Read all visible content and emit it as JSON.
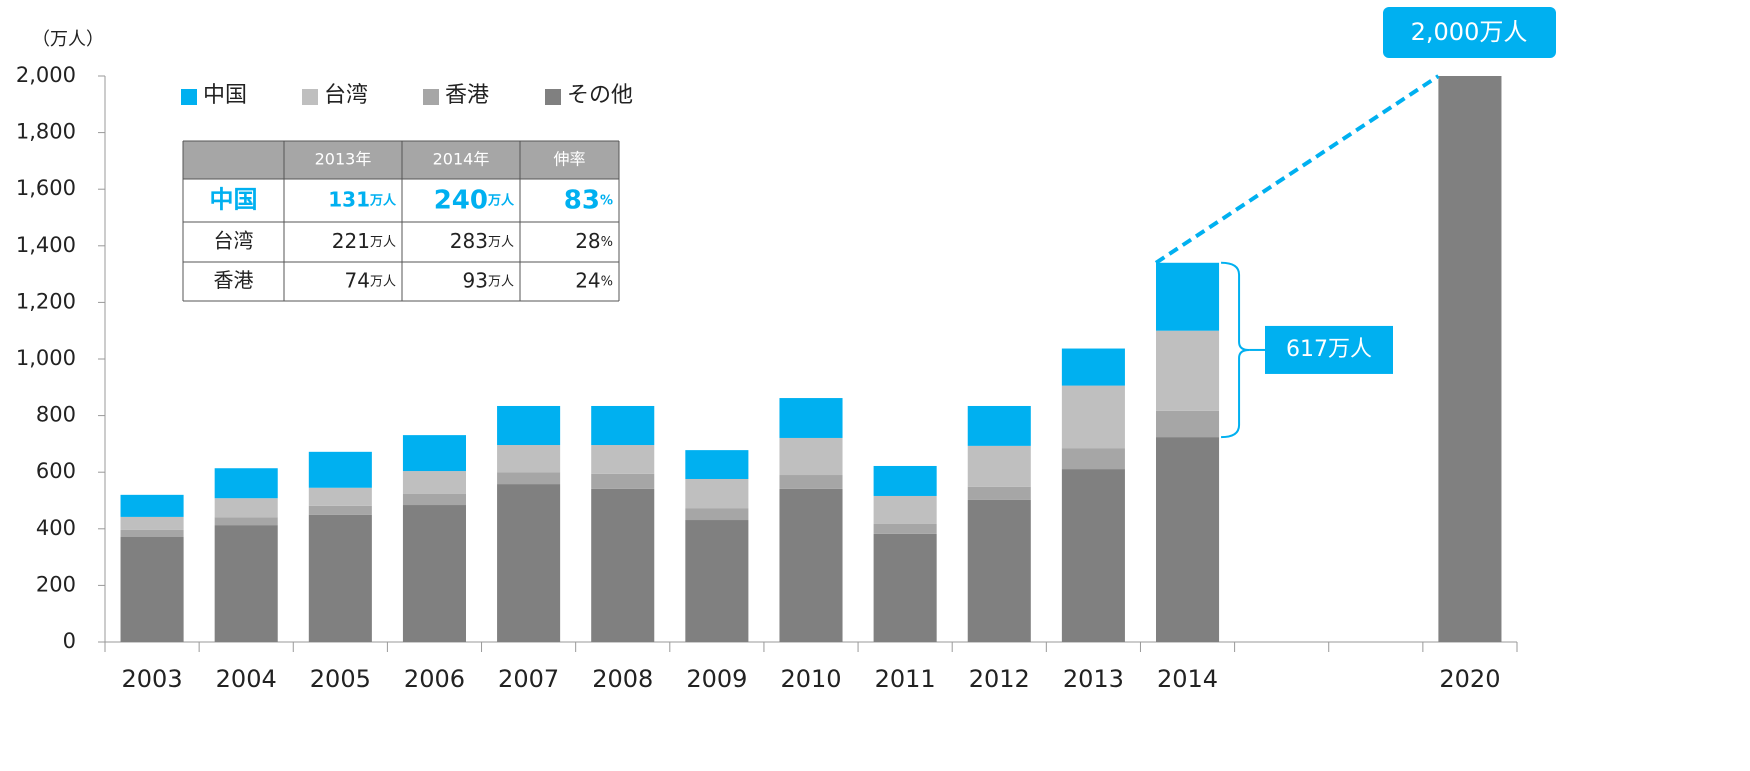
{
  "chart_data": {
    "type": "stacked-bar",
    "y_label": "（万人）",
    "categories": [
      "2003",
      "2004",
      "2005",
      "2006",
      "2007",
      "2008",
      "2009",
      "2010",
      "2011",
      "2012",
      "2013",
      "2014",
      null,
      null,
      "2020"
    ],
    "series": [
      {
        "name": "その他",
        "color": "#808080",
        "values": [
          371,
          413,
          449,
          484,
          558,
          541,
          431,
          541,
          382,
          502,
          611,
          724,
          null,
          null,
          2000
        ]
      },
      {
        "name": "香港",
        "color": "#a6a6a6",
        "values": [
          25,
          28,
          32,
          39,
          42,
          53,
          42,
          49,
          35,
          46,
          74,
          93,
          null,
          null,
          null
        ]
      },
      {
        "name": "台湾",
        "color": "#bfbfbf",
        "values": [
          46,
          67,
          64,
          81,
          96,
          102,
          103,
          131,
          99,
          145,
          221,
          283,
          null,
          null,
          null
        ]
      },
      {
        "name": "中国",
        "color": "#00b0f0",
        "values": [
          78,
          106,
          127,
          127,
          138,
          138,
          102,
          141,
          106,
          141,
          131,
          240,
          null,
          null,
          null
        ]
      }
    ],
    "ylim": [
      0,
      2000
    ],
    "yticks": [
      0,
      200,
      400,
      600,
      800,
      {
        "value": 1000,
        "label": "1,000"
      },
      {
        "value": 1200,
        "label": "1,200"
      },
      {
        "value": 1400,
        "label": "1,400"
      },
      {
        "value": 1600,
        "label": "1,600"
      },
      {
        "value": 1800,
        "label": "1,800"
      },
      {
        "value": 2000,
        "label": "2,000"
      }
    ],
    "annotations": [
      "2,000万人",
      "617万人"
    ],
    "table": {
      "header": [
        "",
        "2013年",
        "2014年",
        "伸率"
      ],
      "rows": [
        {
          "label": "中国",
          "cells": [
            [
              "131",
              "万人"
            ],
            [
              "240",
              "万人"
            ],
            [
              "83",
              "%"
            ]
          ]
        },
        {
          "label": "台湾",
          "cells": [
            [
              "221",
              "万人"
            ],
            [
              "283",
              "万人"
            ],
            [
              "28",
              "%"
            ]
          ]
        },
        {
          "label": "香港",
          "cells": [
            [
              "74",
              "万人"
            ],
            [
              "93",
              "万人"
            ],
            [
              "24",
              "%"
            ]
          ]
        }
      ]
    }
  }
}
